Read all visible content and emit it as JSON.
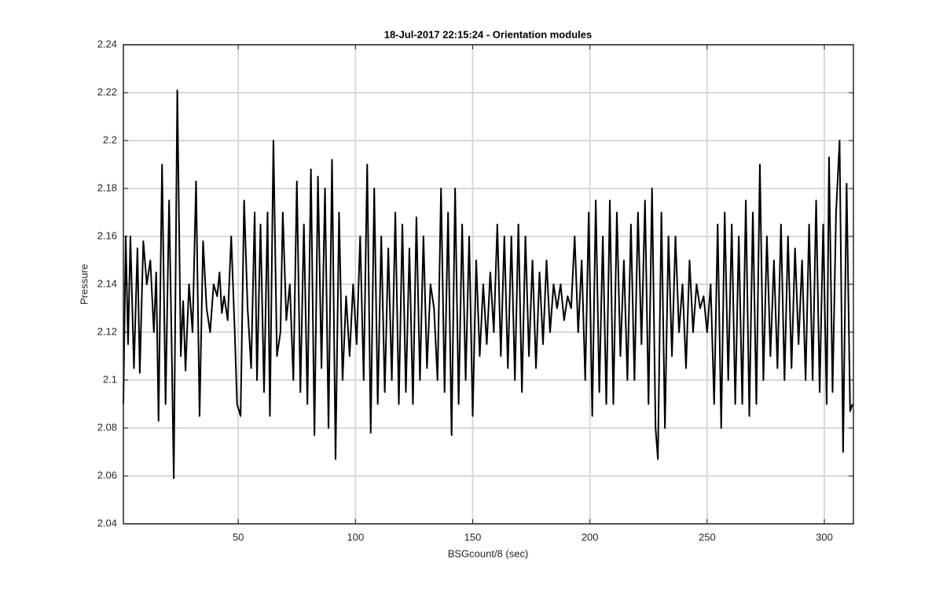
{
  "chart_data": {
    "type": "line",
    "title": "18-Jul-2017 22:15:24 - Orientation modules",
    "x_label": "BSGcount/8 (sec)",
    "y_label": "Pressure",
    "xlim": [
      1,
      312.4
    ],
    "ylim": [
      2.04,
      2.24
    ],
    "xticks": [
      50,
      100,
      150,
      200,
      250,
      300
    ],
    "yticks": [
      2.04,
      2.06,
      2.08,
      2.1,
      2.12,
      2.14,
      2.16,
      2.18,
      2.2,
      2.22,
      2.24
    ],
    "grid": true,
    "x": [
      1,
      2,
      3,
      4,
      5.5,
      7,
      8,
      9.5,
      11,
      12.5,
      14,
      15,
      16,
      17.5,
      19,
      20.5,
      21.5,
      22.5,
      24,
      25.5,
      26.5,
      27.5,
      29,
      30.5,
      32,
      33.5,
      35,
      36.5,
      38,
      39.5,
      41,
      42,
      43,
      44,
      45.5,
      47,
      48.5,
      49.5,
      51,
      52.5,
      54,
      55.5,
      57,
      58,
      59.5,
      61,
      62.5,
      63.5,
      65,
      66.5,
      68,
      69,
      70.5,
      72,
      73.5,
      75,
      76.5,
      78,
      79.5,
      81,
      82.5,
      84,
      85.5,
      87,
      88.5,
      90,
      91.5,
      93,
      94.5,
      96,
      97.5,
      99,
      100.5,
      102,
      103.5,
      105,
      106.5,
      108,
      109.5,
      111,
      112.5,
      114,
      115.5,
      117,
      118.5,
      120,
      121.5,
      123,
      124.5,
      126,
      127.5,
      129,
      130.5,
      132,
      133.5,
      135,
      136.5,
      138,
      139.5,
      141,
      142.5,
      144,
      145.5,
      147,
      148.5,
      150,
      151.5,
      153,
      154.5,
      156,
      157.5,
      159,
      160.5,
      162,
      163.5,
      165,
      166.5,
      168,
      169.5,
      171,
      172.5,
      174,
      175.5,
      177,
      178.5,
      180,
      181.5,
      183,
      184.5,
      186,
      187.5,
      189,
      190.5,
      192,
      193.5,
      195,
      196.5,
      198,
      199.5,
      201,
      202.5,
      204,
      205.5,
      207,
      208.5,
      210,
      211.5,
      213,
      214.5,
      216,
      217.5,
      219,
      220.5,
      222,
      223.5,
      225,
      226.5,
      228,
      229,
      230.5,
      232,
      233.5,
      235,
      236.5,
      238,
      239.5,
      241,
      242.5,
      244,
      245.5,
      247,
      248.5,
      250,
      251.5,
      253,
      254.5,
      256,
      257.5,
      259,
      260.5,
      262,
      263.5,
      265,
      266.5,
      268,
      269.5,
      271,
      272.5,
      274,
      275.5,
      277,
      278.5,
      280,
      281.5,
      283,
      284.5,
      286,
      287.5,
      289,
      290.5,
      292,
      293.5,
      295,
      296.5,
      298,
      299.5,
      301,
      302,
      303.5,
      305,
      306.5,
      308,
      309.5,
      311,
      312
    ],
    "series": [
      {
        "color": "#000000",
        "values": [
          2.09,
          2.16,
          2.115,
          2.16,
          2.105,
          2.155,
          2.103,
          2.158,
          2.14,
          2.15,
          2.12,
          2.145,
          2.083,
          2.19,
          2.09,
          2.175,
          2.12,
          2.059,
          2.221,
          2.11,
          2.133,
          2.104,
          2.14,
          2.12,
          2.183,
          2.085,
          2.158,
          2.13,
          2.12,
          2.14,
          2.135,
          2.145,
          2.128,
          2.135,
          2.125,
          2.16,
          2.12,
          2.09,
          2.085,
          2.175,
          2.13,
          2.105,
          2.17,
          2.1,
          2.165,
          2.095,
          2.17,
          2.085,
          2.2,
          2.11,
          2.12,
          2.17,
          2.125,
          2.14,
          2.1,
          2.183,
          2.095,
          2.165,
          2.09,
          2.188,
          2.077,
          2.185,
          2.105,
          2.18,
          2.08,
          2.192,
          2.067,
          2.17,
          2.1,
          2.135,
          2.11,
          2.14,
          2.115,
          2.16,
          2.1,
          2.19,
          2.078,
          2.18,
          2.09,
          2.16,
          2.095,
          2.155,
          2.1,
          2.17,
          2.09,
          2.165,
          2.095,
          2.155,
          2.09,
          2.168,
          2.1,
          2.16,
          2.105,
          2.14,
          2.13,
          2.1,
          2.18,
          2.095,
          2.17,
          2.077,
          2.18,
          2.09,
          2.165,
          2.1,
          2.16,
          2.085,
          2.15,
          2.11,
          2.14,
          2.115,
          2.145,
          2.12,
          2.165,
          2.11,
          2.16,
          2.105,
          2.16,
          2.1,
          2.165,
          2.095,
          2.16,
          2.11,
          2.15,
          2.105,
          2.145,
          2.115,
          2.15,
          2.12,
          2.14,
          2.13,
          2.14,
          2.125,
          2.135,
          2.13,
          2.16,
          2.12,
          2.15,
          2.1,
          2.17,
          2.085,
          2.175,
          2.095,
          2.16,
          2.09,
          2.175,
          2.09,
          2.17,
          2.11,
          2.15,
          2.1,
          2.165,
          2.1,
          2.17,
          2.115,
          2.175,
          2.09,
          2.18,
          2.08,
          2.067,
          2.17,
          2.08,
          2.16,
          2.11,
          2.16,
          2.12,
          2.14,
          2.105,
          2.15,
          2.12,
          2.14,
          2.13,
          2.135,
          2.12,
          2.14,
          2.09,
          2.165,
          2.08,
          2.17,
          2.1,
          2.165,
          2.09,
          2.16,
          2.09,
          2.175,
          2.085,
          2.17,
          2.09,
          2.19,
          2.1,
          2.16,
          2.11,
          2.15,
          2.105,
          2.165,
          2.1,
          2.16,
          2.105,
          2.155,
          2.115,
          2.15,
          2.1,
          2.165,
          2.1,
          2.175,
          2.095,
          2.165,
          2.09,
          2.193,
          2.095,
          2.17,
          2.2,
          2.07,
          2.182,
          2.087,
          2.09
        ]
      }
    ]
  }
}
